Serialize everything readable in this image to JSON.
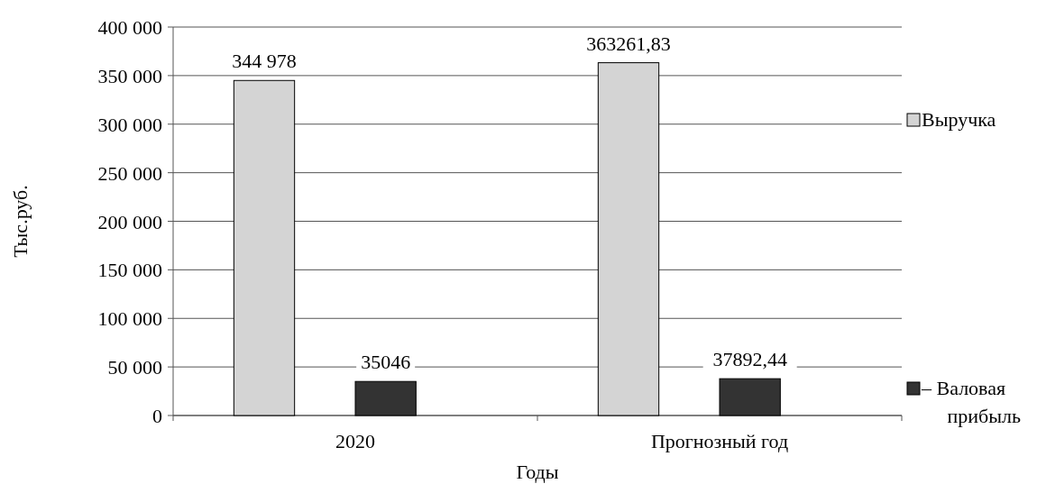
{
  "chart_data": {
    "type": "bar",
    "xlabel": "Годы",
    "ylabel": "Тыс.руб.",
    "categories": [
      "2020",
      "Прогнозный год"
    ],
    "series": [
      {
        "name": "Выручка",
        "color": "#d4d4d4",
        "values": [
          344978,
          363261.83
        ],
        "value_labels": [
          "344 978",
          "363261,83"
        ]
      },
      {
        "name": "– Валовая прибыль",
        "color": "#333333",
        "values": [
          35046,
          37892.44
        ],
        "value_labels": [
          "35046",
          "37892,44"
        ]
      }
    ],
    "ylim": [
      0,
      400000
    ],
    "yticks": [
      {
        "value": 0,
        "label": "0"
      },
      {
        "value": 50000,
        "label": "50 000"
      },
      {
        "value": 100000,
        "label": "100 000"
      },
      {
        "value": 150000,
        "label": "150 000"
      },
      {
        "value": 200000,
        "label": "200 000"
      },
      {
        "value": 250000,
        "label": "250 000"
      },
      {
        "value": 300000,
        "label": "300 000"
      },
      {
        "value": 350000,
        "label": "350 000"
      },
      {
        "value": 400000,
        "label": "400 000"
      }
    ],
    "grid": "y",
    "legend": "right"
  }
}
